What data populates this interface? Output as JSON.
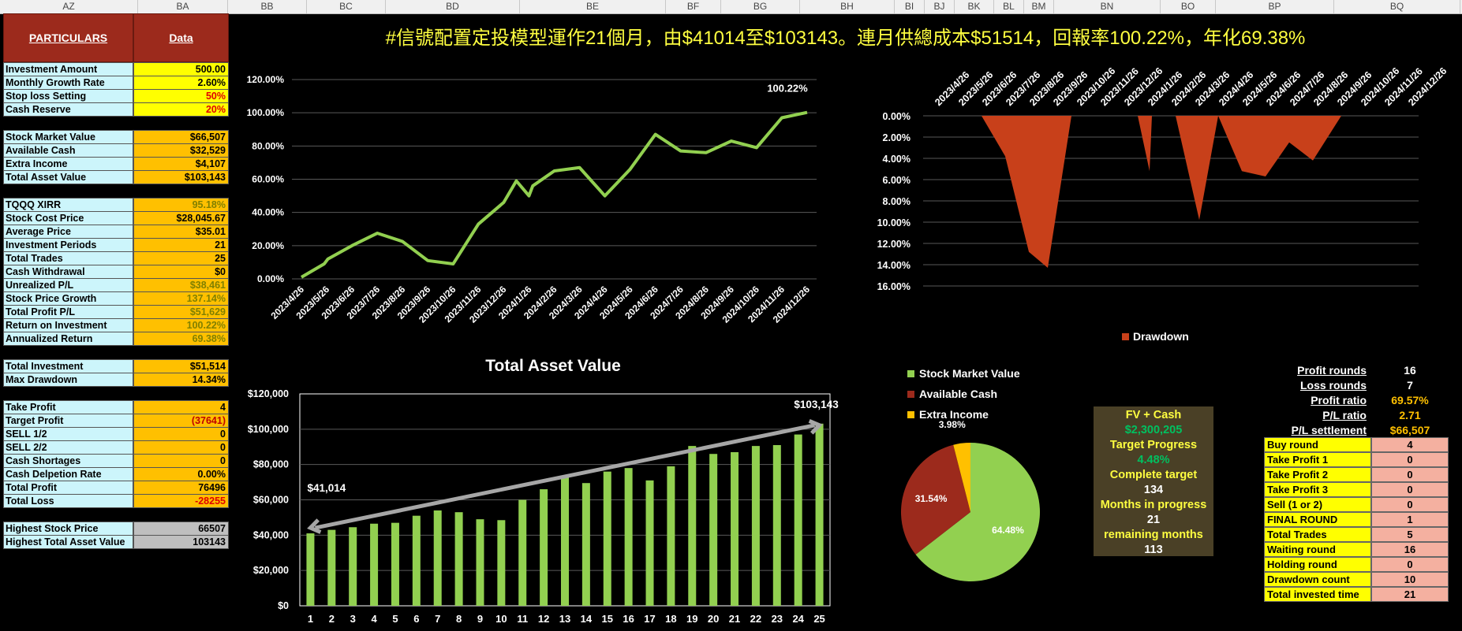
{
  "columns": [
    "AZ",
    "BA",
    "BB",
    "BC",
    "BD",
    "BE",
    "BF",
    "BG",
    "BH",
    "BI",
    "BJ",
    "BK",
    "BL",
    "BM",
    "BN",
    "BO",
    "BP",
    "BQ"
  ],
  "header": {
    "particulars": "PARTICULARS",
    "data": "Data"
  },
  "title": "#信號配置定投模型運作21個月，由$41014至$103143。連月供總成本$51514，回報率100.22%，年化69.38%",
  "left_table": [
    {
      "label": "Investment Amount",
      "value": "500.00",
      "style": "yel"
    },
    {
      "label": "Monthly Growth Rate",
      "value": "2.60%",
      "style": "yel"
    },
    {
      "label": "Stop loss Setting",
      "value": "50%",
      "style": "yel red"
    },
    {
      "label": "Cash Reserve",
      "value": "20%",
      "style": "yel red"
    },
    {
      "label": "Stock Market Value",
      "value": "$66,507",
      "style": ""
    },
    {
      "label": "Available Cash",
      "value": "$32,529",
      "style": ""
    },
    {
      "label": "Extra Income",
      "value": "$4,107",
      "style": ""
    },
    {
      "label": "Total Asset Value",
      "value": "$103,143",
      "style": ""
    },
    {
      "label": "TQQQ XIRR",
      "value": "95.18%",
      "style": "olive"
    },
    {
      "label": "Stock Cost Price",
      "value": "$28,045.67",
      "style": ""
    },
    {
      "label": "Average Price",
      "value": "$35.01",
      "style": ""
    },
    {
      "label": "Investment Periods",
      "value": "21",
      "style": ""
    },
    {
      "label": "Total Trades",
      "value": "25",
      "style": ""
    },
    {
      "label": "Cash Withdrawal",
      "value": "$0",
      "style": ""
    },
    {
      "label": "Unrealized P/L",
      "value": "$38,461",
      "style": "olive"
    },
    {
      "label": "Stock Price Growth",
      "value": "137.14%",
      "style": "olive"
    },
    {
      "label": "Total Profit P/L",
      "value": "$51,629",
      "style": "olive"
    },
    {
      "label": "Return on Investment",
      "value": "100.22%",
      "style": "olive"
    },
    {
      "label": "Annualized Return",
      "value": "69.38%",
      "style": "olive"
    },
    {
      "label": "Total Investment",
      "value": "$51,514",
      "style": ""
    },
    {
      "label": "Max Drawdown",
      "value": "14.34%",
      "style": ""
    },
    {
      "label": "Take Profit",
      "value": "4",
      "style": ""
    },
    {
      "label": "Target Profit",
      "value": "(37641)",
      "style": "darkred"
    },
    {
      "label": "SELL 1/2",
      "value": "0",
      "style": ""
    },
    {
      "label": "SELL 2/2",
      "value": "0",
      "style": ""
    },
    {
      "label": "Cash Shortages",
      "value": "0",
      "style": ""
    },
    {
      "label": "Cash Delpetion Rate",
      "value": "0.00%",
      "style": ""
    },
    {
      "label": "Total Profit",
      "value": "76496",
      "style": ""
    },
    {
      "label": "Total Loss",
      "value": "-28255",
      "style": "red"
    },
    {
      "label": "Highest Stock Price",
      "value": "66507",
      "style": "gray"
    },
    {
      "label": "Highest Total Asset Value",
      "value": "103143",
      "style": "gray"
    }
  ],
  "fv_box": {
    "fv_label": "FV + Cash",
    "fv_value": "$2,300,205",
    "target_label": "Target Progress",
    "target_value": "4.48%",
    "complete_label": "Complete target",
    "complete_value": "134",
    "months_label": "Months in progress",
    "months_value": "21",
    "remaining_label": "remaining months",
    "remaining_value": "113"
  },
  "right_stats": [
    {
      "label": "Profit rounds",
      "value": "16",
      "color": "#ffffff"
    },
    {
      "label": "Loss rounds",
      "value": "7",
      "color": "#ffffff"
    },
    {
      "label": "Profit ratio",
      "value": "69.57%",
      "color": "#ffc000"
    },
    {
      "label": "P/L ratio",
      "value": "2.71",
      "color": "#ffc000"
    },
    {
      "label": "P/L settlement",
      "value": "$66,507",
      "color": "#ffc000"
    }
  ],
  "right_table": [
    {
      "label": "Buy round",
      "value": "4"
    },
    {
      "label": "Take Profit 1",
      "value": "0"
    },
    {
      "label": "Take Profit 2",
      "value": "0"
    },
    {
      "label": "Take Profit 3",
      "value": "0"
    },
    {
      "label": "Sell (1 or 2)",
      "value": "0"
    },
    {
      "label": "FINAL ROUND",
      "value": "1"
    },
    {
      "label": "Total  Trades",
      "value": "5"
    },
    {
      "label": "Waiting round",
      "value": "16"
    },
    {
      "label": "Holding round",
      "value": "0"
    },
    {
      "label": "Drawdown count",
      "value": "10"
    },
    {
      "label": "Total invested time",
      "value": "21"
    }
  ],
  "chart_data": [
    {
      "type": "line",
      "title": "",
      "x_labels": [
        "2023/4/26",
        "2023/5/26",
        "2023/6/26",
        "2023/7/26",
        "2023/8/26",
        "2023/9/26",
        "2023/10/26",
        "2023/11/26",
        "2023/12/26",
        "2024/1/26",
        "2024/2/26",
        "2024/3/26",
        "2024/4/26",
        "2024/5/26",
        "2024/6/26",
        "2024/7/26",
        "2024/8/26",
        "2024/9/26",
        "2024/10/26",
        "2024/11/26",
        "2024/12/26"
      ],
      "x": [
        0,
        0.9,
        1.05,
        2,
        3,
        4,
        5,
        6,
        7,
        8,
        8.5,
        9,
        9.15,
        10,
        11,
        12,
        13,
        14,
        15,
        16,
        17,
        18,
        19,
        20
      ],
      "y": [
        1,
        9,
        12,
        20,
        27.5,
        22.5,
        11,
        9,
        33,
        46,
        59,
        50,
        56,
        65,
        67,
        50,
        66,
        87,
        77,
        76,
        83,
        79,
        97,
        100.22
      ],
      "ylim": [
        0,
        120
      ],
      "y_ticks": [
        "0.00%",
        "20.00%",
        "40.00%",
        "60.00%",
        "80.00%",
        "100.00%",
        "120.00%"
      ],
      "end_label": "100.22%",
      "color": "#92d050"
    },
    {
      "type": "area",
      "series_name": "Drawdown",
      "x_labels": [
        "2023/4/26",
        "2023/5/26",
        "2023/6/26",
        "2023/7/26",
        "2023/8/26",
        "2023/9/26",
        "2023/10/26",
        "2023/11/26",
        "2023/12/26",
        "2024/1/26",
        "2024/2/26",
        "2024/3/26",
        "2024/4/26",
        "2024/5/26",
        "2024/6/26",
        "2024/7/26",
        "2024/8/26",
        "2024/9/26",
        "2024/10/26",
        "2024/11/26",
        "2024/12/26"
      ],
      "x": [
        0,
        1,
        2,
        2,
        3,
        4,
        4.8,
        5.8,
        6,
        7,
        7.5,
        7.9,
        8.05,
        8.6,
        9.1,
        9.2,
        10.2,
        11.2,
        12,
        13,
        14,
        15,
        16,
        17.2,
        18
      ],
      "y": [
        0,
        0,
        0,
        0,
        3.8,
        12.8,
        14.3,
        0,
        0,
        0,
        0,
        0,
        0,
        0,
        5.2,
        0,
        0,
        9.8,
        0,
        5.2,
        5.7,
        2.5,
        4.2,
        0,
        0
      ],
      "ylim": [
        0,
        16
      ],
      "y_ticks": [
        "0.00%",
        "2.00%",
        "4.00%",
        "6.00%",
        "8.00%",
        "10.00%",
        "12.00%",
        "14.00%",
        "16.00%"
      ],
      "color": "#c8401a"
    },
    {
      "type": "bar",
      "title": "Total Asset Value",
      "categories": [
        "1",
        "2",
        "3",
        "4",
        "5",
        "6",
        "7",
        "8",
        "9",
        "10",
        "11",
        "12",
        "13",
        "14",
        "15",
        "16",
        "17",
        "18",
        "19",
        "20",
        "21",
        "22",
        "23",
        "24",
        "25"
      ],
      "values": [
        41014,
        43000,
        44500,
        46500,
        47000,
        51000,
        54000,
        53000,
        49000,
        48500,
        60000,
        66000,
        73000,
        69500,
        76000,
        78000,
        71000,
        79000,
        90500,
        86000,
        87000,
        90500,
        91000,
        97000,
        103143
      ],
      "ylim": [
        0,
        120000
      ],
      "y_ticks": [
        "$0",
        "$20,000",
        "$40,000",
        "$60,000",
        "$80,000",
        "$100,000",
        "$120,000"
      ],
      "start_label": "$41,014",
      "end_label": "$103,143",
      "color": "#92d050"
    },
    {
      "type": "pie",
      "labels": [
        "Stock Market Value",
        "Available Cash",
        "Extra Income"
      ],
      "values": [
        64.48,
        31.54,
        3.98
      ],
      "value_labels": [
        "64.48%",
        "31.54%",
        "3.98%"
      ],
      "colors": [
        "#92d050",
        "#9c2a1c",
        "#ffc000"
      ]
    }
  ]
}
